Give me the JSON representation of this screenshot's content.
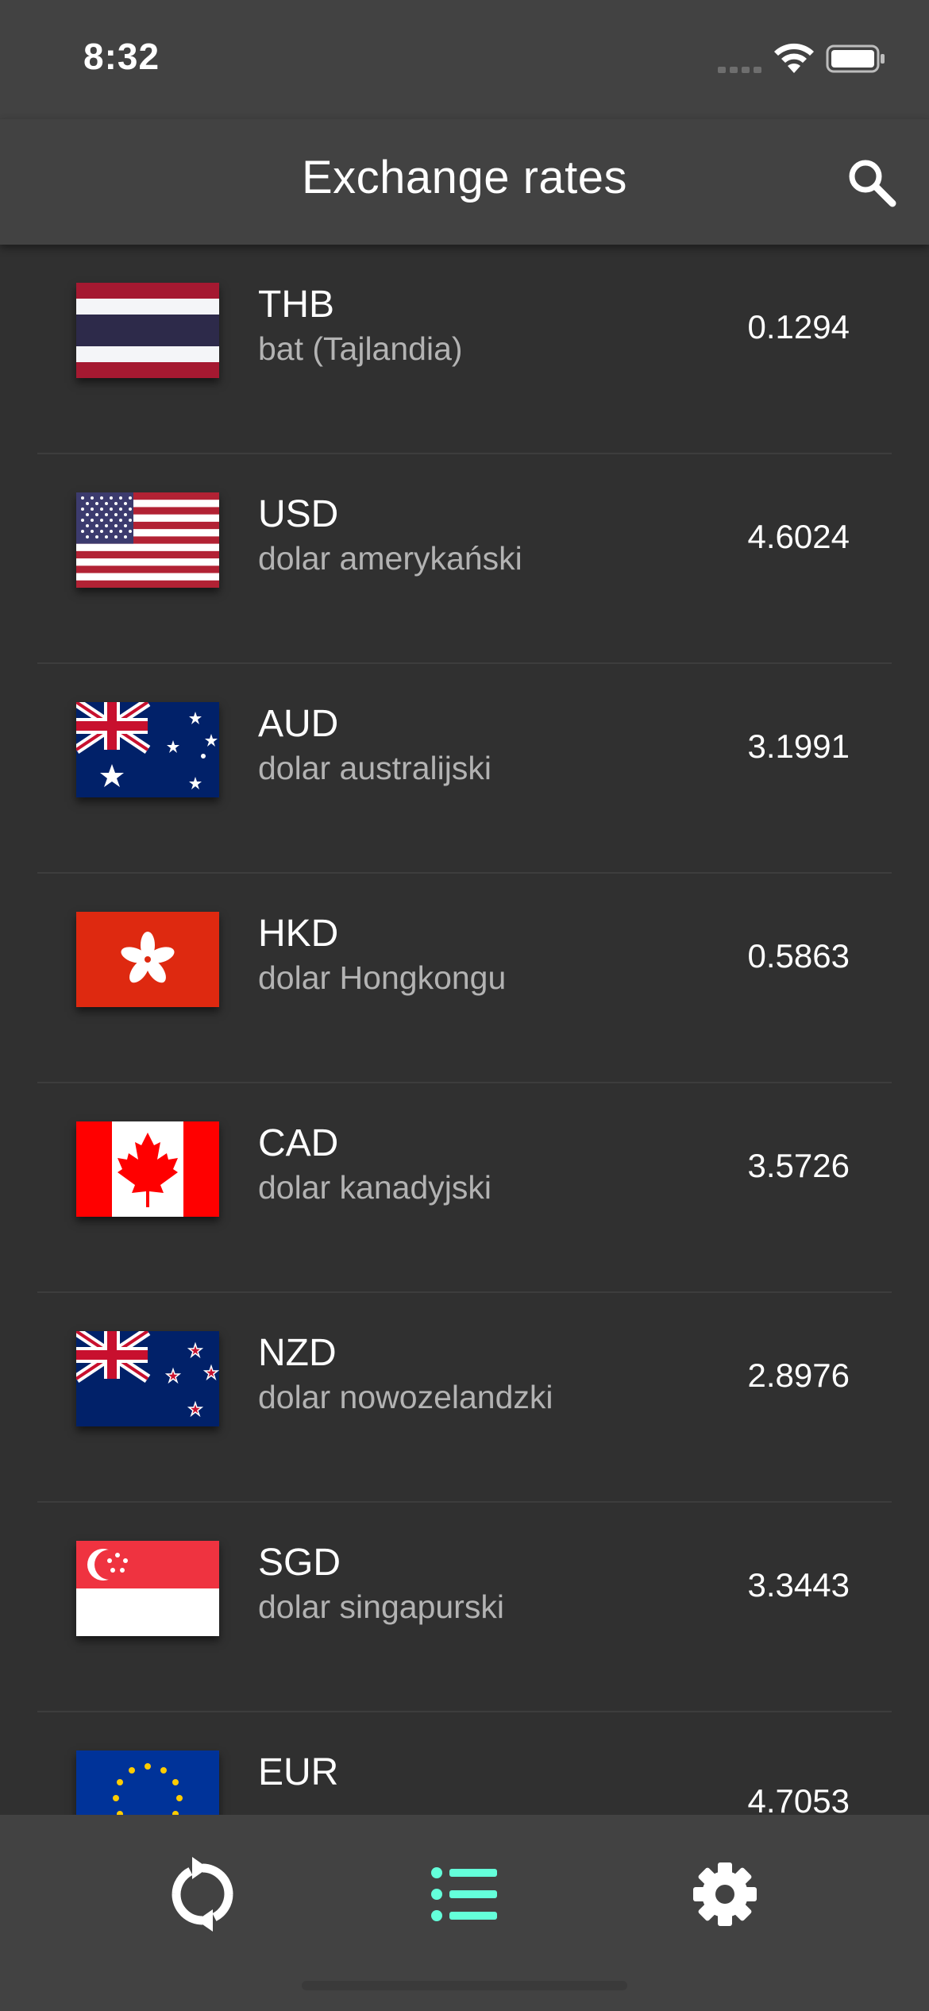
{
  "status_bar": {
    "time": "8:32"
  },
  "app_bar": {
    "title": "Exchange rates",
    "search_icon": "search-icon"
  },
  "currencies": [
    {
      "code": "THB",
      "name": "bat (Tajlandia)",
      "rate": "0.1294",
      "flag": "thailand-flag"
    },
    {
      "code": "USD",
      "name": "dolar amerykański",
      "rate": "4.6024",
      "flag": "usa-flag"
    },
    {
      "code": "AUD",
      "name": "dolar australijski",
      "rate": "3.1991",
      "flag": "australia-flag"
    },
    {
      "code": "HKD",
      "name": "dolar Hongkongu",
      "rate": "0.5863",
      "flag": "hong-kong-flag"
    },
    {
      "code": "CAD",
      "name": "dolar kanadyjski",
      "rate": "3.5726",
      "flag": "canada-flag"
    },
    {
      "code": "NZD",
      "name": "dolar nowozelandzki",
      "rate": "2.8976",
      "flag": "new-zealand-flag"
    },
    {
      "code": "SGD",
      "name": "dolar singapurski",
      "rate": "3.3443",
      "flag": "singapore-flag"
    },
    {
      "code": "EUR",
      "name": "",
      "rate": "4.7053",
      "flag": "eu-flag"
    }
  ],
  "bottom_nav": {
    "items": [
      {
        "icon": "refresh-icon",
        "active": false
      },
      {
        "icon": "list-icon",
        "active": true
      },
      {
        "icon": "settings-icon",
        "active": false
      }
    ],
    "active_color": "#64ffda",
    "inactive_color": "#ffffff"
  },
  "colors": {
    "background": "#303030",
    "bar": "#424242",
    "accent": "#64ffda"
  }
}
